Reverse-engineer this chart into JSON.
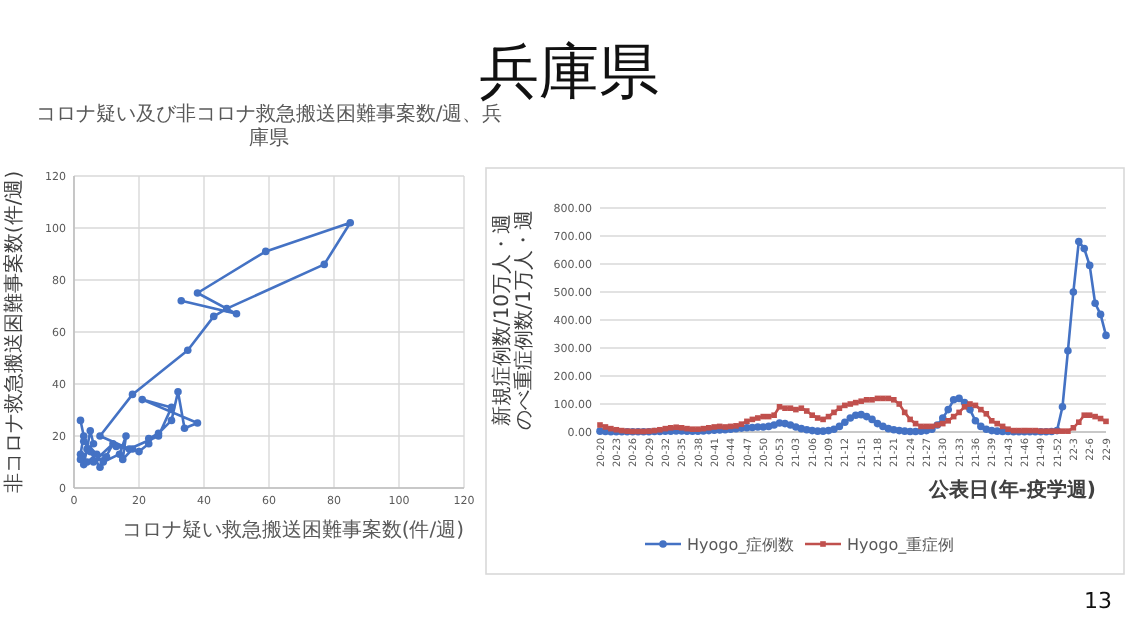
{
  "chart_data": [
    {
      "type": "other",
      "title": "兵庫県",
      "annotations": [
        "13"
      ]
    },
    {
      "type": "line",
      "title": "コロナ疑い及び非コロナ救急搬送困難事案数/週、兵庫県",
      "xlabel": "コロナ疑い救急搬送困難事案数(件/週)",
      "ylabel": "非コロナ救急搬送困難事案数(件/週)",
      "xlim": [
        0,
        120
      ],
      "ylim": [
        0,
        120
      ],
      "xticks": [
        0,
        20,
        40,
        60,
        80,
        100,
        120
      ],
      "yticks": [
        0,
        20,
        40,
        60,
        80,
        100,
        120
      ],
      "grid": true,
      "marker": "circle",
      "legend": false,
      "series": [
        {
          "color": "#4472c4",
          "x": [
            2,
            3,
            2,
            3,
            4,
            5,
            6,
            2,
            4,
            7,
            3,
            8,
            5,
            10,
            6,
            12,
            9,
            14,
            16,
            15,
            18,
            13,
            20,
            23,
            23,
            26,
            30,
            32,
            34,
            38,
            21,
            30,
            26,
            17,
            8,
            18,
            35,
            43,
            47,
            77,
            85,
            59,
            38,
            50,
            33
          ],
          "values": [
            26,
            20,
            13,
            9,
            15,
            22,
            17,
            11,
            10,
            13,
            18,
            8,
            14,
            12,
            10,
            17,
            10,
            13,
            20,
            11,
            15,
            16,
            14,
            17,
            19,
            21,
            26,
            37,
            23,
            25,
            34,
            31,
            20,
            15,
            20,
            36,
            53,
            66,
            69,
            86,
            102,
            91,
            75,
            67,
            72
          ]
        }
      ]
    },
    {
      "type": "line",
      "xlabel": "公表日(年-疫学週)",
      "ylabel": "新規症例数/10万人・週のべ重症例数/1万人・週",
      "ylim": [
        0,
        800
      ],
      "yticks": [
        {
          "value": 0,
          "label": "0.00"
        },
        {
          "value": 100,
          "label": "100.00"
        },
        {
          "value": 200,
          "label": "200.00"
        },
        {
          "value": 300,
          "label": "300.00"
        },
        {
          "value": 400,
          "label": "400.00"
        },
        {
          "value": 500,
          "label": "500.00"
        },
        {
          "value": 600,
          "label": "600.00"
        },
        {
          "value": 700,
          "label": "700.00"
        },
        {
          "value": 800,
          "label": "800.00"
        }
      ],
      "grid": "y",
      "legend": "bottom",
      "categories": [
        "20-20",
        null,
        null,
        "20-23",
        null,
        null,
        "20-26",
        null,
        null,
        "20-29",
        null,
        null,
        "20-32",
        null,
        null,
        "20-35",
        null,
        null,
        "20-38",
        null,
        null,
        "20-41",
        null,
        null,
        "20-44",
        null,
        null,
        "20-47",
        null,
        null,
        "20-50",
        null,
        null,
        "20-53",
        null,
        null,
        "21-03",
        null,
        null,
        "21-06",
        null,
        null,
        "21-09",
        null,
        null,
        "21-12",
        null,
        null,
        "21-15",
        null,
        null,
        "21-18",
        null,
        null,
        "21-21",
        null,
        null,
        "21-24",
        null,
        null,
        "21-27",
        null,
        null,
        "21-30",
        null,
        null,
        "21-33",
        null,
        null,
        "21-36",
        null,
        null,
        "21-39",
        null,
        null,
        "21-43",
        null,
        null,
        "21-46",
        null,
        null,
        "21-49",
        null,
        null,
        "21-52",
        null,
        null,
        "22-3",
        null,
        null,
        "22-6",
        null,
        null,
        "22-9"
      ],
      "series": [
        {
          "name": "Hyogo_症例数",
          "color": "#4472c4",
          "marker": "circle",
          "values": [
            3,
            2,
            1,
            1,
            1,
            1,
            1,
            1,
            1,
            1,
            2,
            2,
            3,
            3,
            4,
            4,
            3,
            3,
            3,
            4,
            5,
            6,
            7,
            8,
            10,
            12,
            14,
            15,
            16,
            18,
            18,
            20,
            25,
            32,
            30,
            25,
            18,
            12,
            8,
            5,
            3,
            3,
            5,
            10,
            20,
            35,
            50,
            60,
            62,
            55,
            45,
            30,
            20,
            12,
            8,
            5,
            3,
            2,
            2,
            3,
            5,
            10,
            25,
            50,
            80,
            115,
            120,
            105,
            80,
            40,
            20,
            10,
            5,
            3,
            2,
            2,
            1,
            1,
            1,
            1,
            1,
            1,
            1,
            2,
            5,
            90,
            290,
            500,
            680,
            655,
            595,
            460,
            420,
            345
          ]
        },
        {
          "name": "Hyogo_重症例",
          "color": "#c0504d",
          "marker": "square",
          "values": [
            25,
            18,
            12,
            8,
            5,
            3,
            2,
            2,
            2,
            3,
            5,
            8,
            12,
            15,
            17,
            15,
            12,
            10,
            10,
            12,
            15,
            18,
            20,
            18,
            20,
            22,
            28,
            38,
            45,
            50,
            55,
            55,
            60,
            90,
            85,
            85,
            80,
            85,
            75,
            60,
            50,
            45,
            55,
            70,
            85,
            95,
            100,
            105,
            110,
            115,
            115,
            120,
            120,
            120,
            115,
            100,
            70,
            45,
            30,
            20,
            20,
            20,
            25,
            30,
            40,
            55,
            70,
            90,
            100,
            95,
            80,
            65,
            40,
            30,
            20,
            10,
            5,
            5,
            5,
            5,
            5,
            3,
            3,
            3,
            3,
            3,
            3,
            15,
            35,
            60,
            60,
            55,
            48,
            38
          ]
        }
      ]
    }
  ]
}
